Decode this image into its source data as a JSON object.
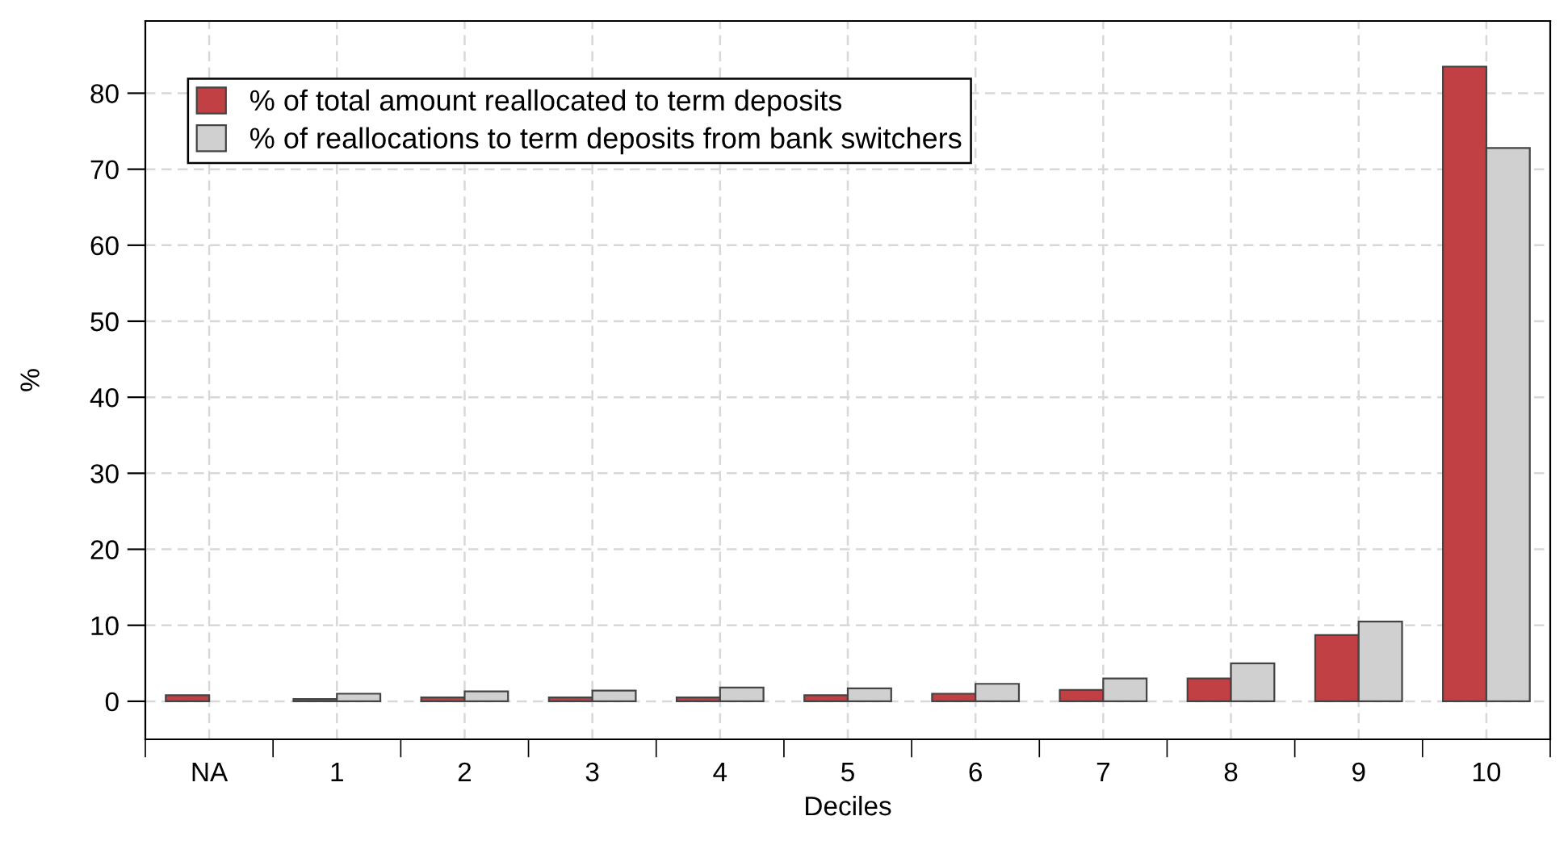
{
  "chart_data": {
    "type": "bar",
    "xlabel": "Deciles",
    "ylabel": "%",
    "categories": [
      "NA",
      "1",
      "2",
      "3",
      "4",
      "5",
      "6",
      "7",
      "8",
      "9",
      "10"
    ],
    "series": [
      {
        "name": "% of total amount reallocated to term deposits",
        "color": "#c04044",
        "values": [
          0.8,
          0.3,
          0.5,
          0.5,
          0.5,
          0.8,
          1.0,
          1.5,
          3.0,
          8.7,
          83.5
        ]
      },
      {
        "name": "% of reallocations to term deposits from bank switchers",
        "color": "#d0d0d0",
        "values": [
          null,
          1.0,
          1.3,
          1.4,
          1.8,
          1.7,
          2.3,
          3.0,
          5.0,
          10.5,
          72.8
        ]
      }
    ],
    "ylim": [
      -5,
      89.5
    ],
    "yticks": [
      0,
      10,
      20,
      30,
      40,
      50,
      60,
      70,
      80
    ],
    "grid": true,
    "legend": "top left"
  }
}
